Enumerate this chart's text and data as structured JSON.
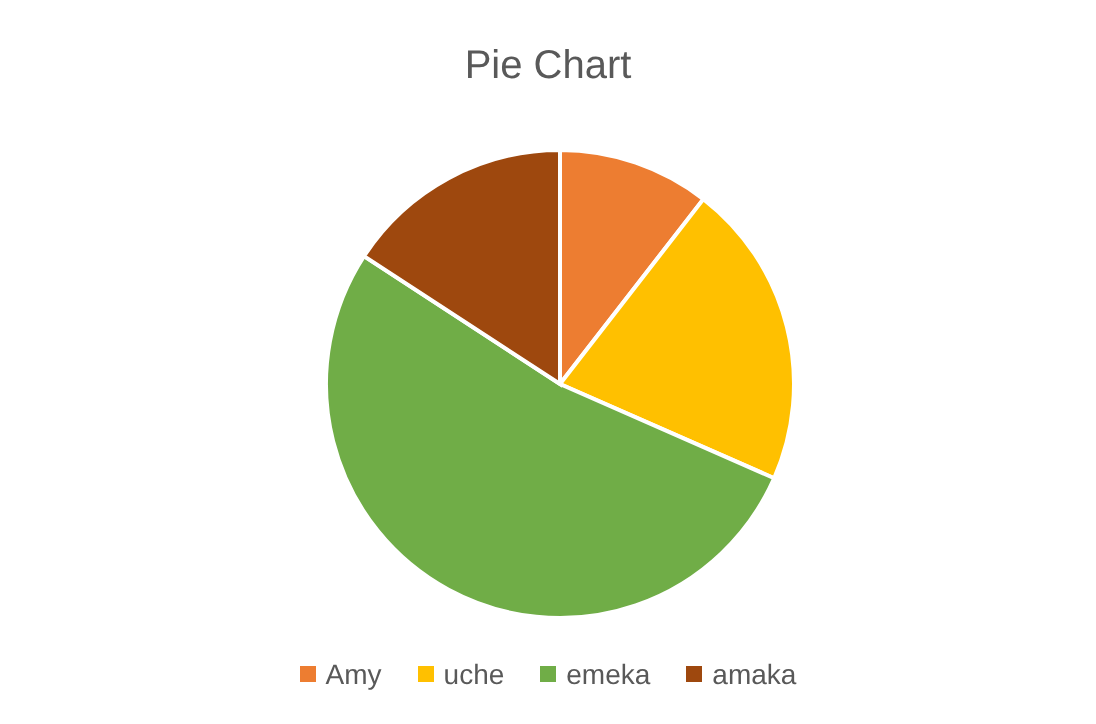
{
  "chart_data": {
    "type": "pie",
    "title": "Pie Chart",
    "categories": [
      "Amy",
      "uche",
      "emeka",
      "amaka"
    ],
    "values": [
      10.5,
      21.1,
      52.6,
      15.8
    ],
    "colors": [
      "#ed7d31",
      "#ffc000",
      "#70ad47",
      "#9e480e"
    ],
    "legend": "bottom"
  }
}
